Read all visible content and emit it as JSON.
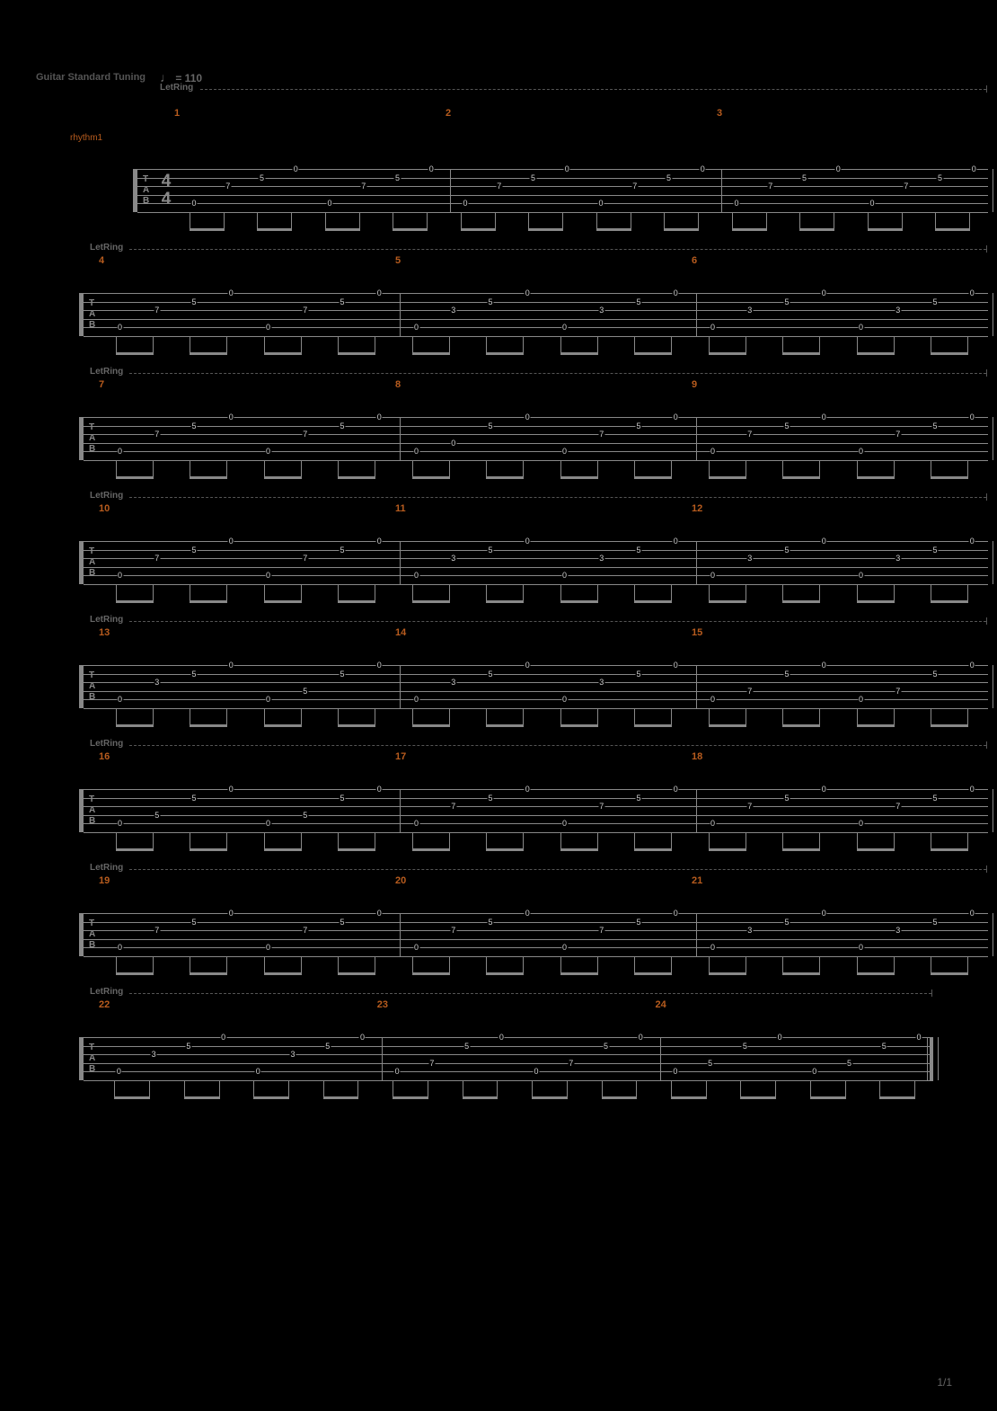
{
  "subtitle": "Guitar Standard Tuning",
  "tempo_text": "= 110",
  "letring_text": "LetRing",
  "track_label": "rhythm1",
  "tab_letters": [
    "T",
    "A",
    "B"
  ],
  "time_sig_top": "4",
  "time_sig_bot": "4",
  "page_num": "1/1",
  "colors": {
    "bg": "#000000",
    "staff": "#888888",
    "accent": "#b85c1e",
    "muted": "#555555",
    "text": "#666666",
    "fret": "#cccccc"
  },
  "layout": {
    "staff_left_first": 108,
    "staff_left_rest": 48,
    "staff_right": 1060,
    "string_spacing": 9.6,
    "n_strings": 6,
    "system_spacing": 36,
    "stem_height": 18
  },
  "patternA": [
    {
      "s": 5,
      "f": "0"
    },
    {
      "s": 3,
      "f": "7"
    },
    {
      "s": 2,
      "f": "5"
    },
    {
      "s": 1,
      "f": "0"
    },
    {
      "s": 5,
      "f": "0"
    },
    {
      "s": 3,
      "f": "7"
    },
    {
      "s": 2,
      "f": "5"
    },
    {
      "s": 1,
      "f": "0"
    }
  ],
  "patternB": [
    {
      "s": 5,
      "f": "0"
    },
    {
      "s": 3,
      "f": "3"
    },
    {
      "s": 2,
      "f": "5"
    },
    {
      "s": 1,
      "f": "0"
    },
    {
      "s": 5,
      "f": "0"
    },
    {
      "s": 3,
      "f": "3"
    },
    {
      "s": 2,
      "f": "5"
    },
    {
      "s": 1,
      "f": "0"
    }
  ],
  "patternC": [
    {
      "s": 5,
      "f": "0"
    },
    {
      "s": 4,
      "f": "0"
    },
    {
      "s": 2,
      "f": "5"
    },
    {
      "s": 1,
      "f": "0"
    },
    {
      "s": 5,
      "f": "0"
    },
    {
      "s": 3,
      "f": "7"
    },
    {
      "s": 2,
      "f": "5"
    },
    {
      "s": 1,
      "f": "0"
    }
  ],
  "patternD": [
    {
      "s": 5,
      "f": "0"
    },
    {
      "s": 4,
      "f": "5"
    },
    {
      "s": 2,
      "f": "5"
    },
    {
      "s": 1,
      "f": "0"
    },
    {
      "s": 5,
      "f": "0"
    },
    {
      "s": 4,
      "f": "5"
    },
    {
      "s": 2,
      "f": "5"
    },
    {
      "s": 1,
      "f": "0"
    }
  ],
  "patternE": [
    {
      "s": 5,
      "f": "0"
    },
    {
      "s": 4,
      "f": "7"
    },
    {
      "s": 2,
      "f": "5"
    },
    {
      "s": 1,
      "f": "0"
    },
    {
      "s": 5,
      "f": "0"
    },
    {
      "s": 4,
      "f": "7"
    },
    {
      "s": 2,
      "f": "5"
    },
    {
      "s": 1,
      "f": "0"
    }
  ],
  "patternF": [
    {
      "s": 5,
      "f": "0"
    },
    {
      "s": 3,
      "f": "3"
    },
    {
      "s": 2,
      "f": "5"
    },
    {
      "s": 1,
      "f": "0"
    },
    {
      "s": 5,
      "f": "0"
    },
    {
      "s": 4,
      "f": "5"
    },
    {
      "s": 2,
      "f": "5"
    },
    {
      "s": 1,
      "f": "0"
    }
  ],
  "systems": [
    {
      "first": true,
      "measures": [
        {
          "num": 1,
          "pattern": "patternA"
        },
        {
          "num": 2,
          "pattern": "patternA"
        },
        {
          "num": 3,
          "pattern": "patternA"
        }
      ]
    },
    {
      "measures": [
        {
          "num": 4,
          "pattern": "patternA"
        },
        {
          "num": 5,
          "pattern": "patternB"
        },
        {
          "num": 6,
          "pattern": "patternB"
        }
      ]
    },
    {
      "measures": [
        {
          "num": 7,
          "pattern": "patternA"
        },
        {
          "num": 8,
          "pattern": "patternC"
        },
        {
          "num": 9,
          "pattern": "patternA"
        }
      ]
    },
    {
      "measures": [
        {
          "num": 10,
          "pattern": "patternA"
        },
        {
          "num": 11,
          "pattern": "patternB"
        },
        {
          "num": 12,
          "pattern": "patternB"
        }
      ]
    },
    {
      "measures": [
        {
          "num": 13,
          "pattern": "patternF"
        },
        {
          "num": 14,
          "pattern": "patternB"
        },
        {
          "num": 15,
          "pattern": "patternE"
        }
      ]
    },
    {
      "measures": [
        {
          "num": 16,
          "pattern": "patternD"
        },
        {
          "num": 17,
          "pattern": "patternA"
        },
        {
          "num": 18,
          "pattern": "patternA"
        }
      ]
    },
    {
      "measures": [
        {
          "num": 19,
          "pattern": "patternA"
        },
        {
          "num": 20,
          "pattern": "patternA"
        },
        {
          "num": 21,
          "pattern": "patternB"
        }
      ]
    },
    {
      "last": true,
      "measures": [
        {
          "num": 22,
          "pattern": "patternB"
        },
        {
          "num": 23,
          "pattern": "patternE"
        },
        {
          "num": 24,
          "pattern": "patternD"
        }
      ]
    }
  ]
}
